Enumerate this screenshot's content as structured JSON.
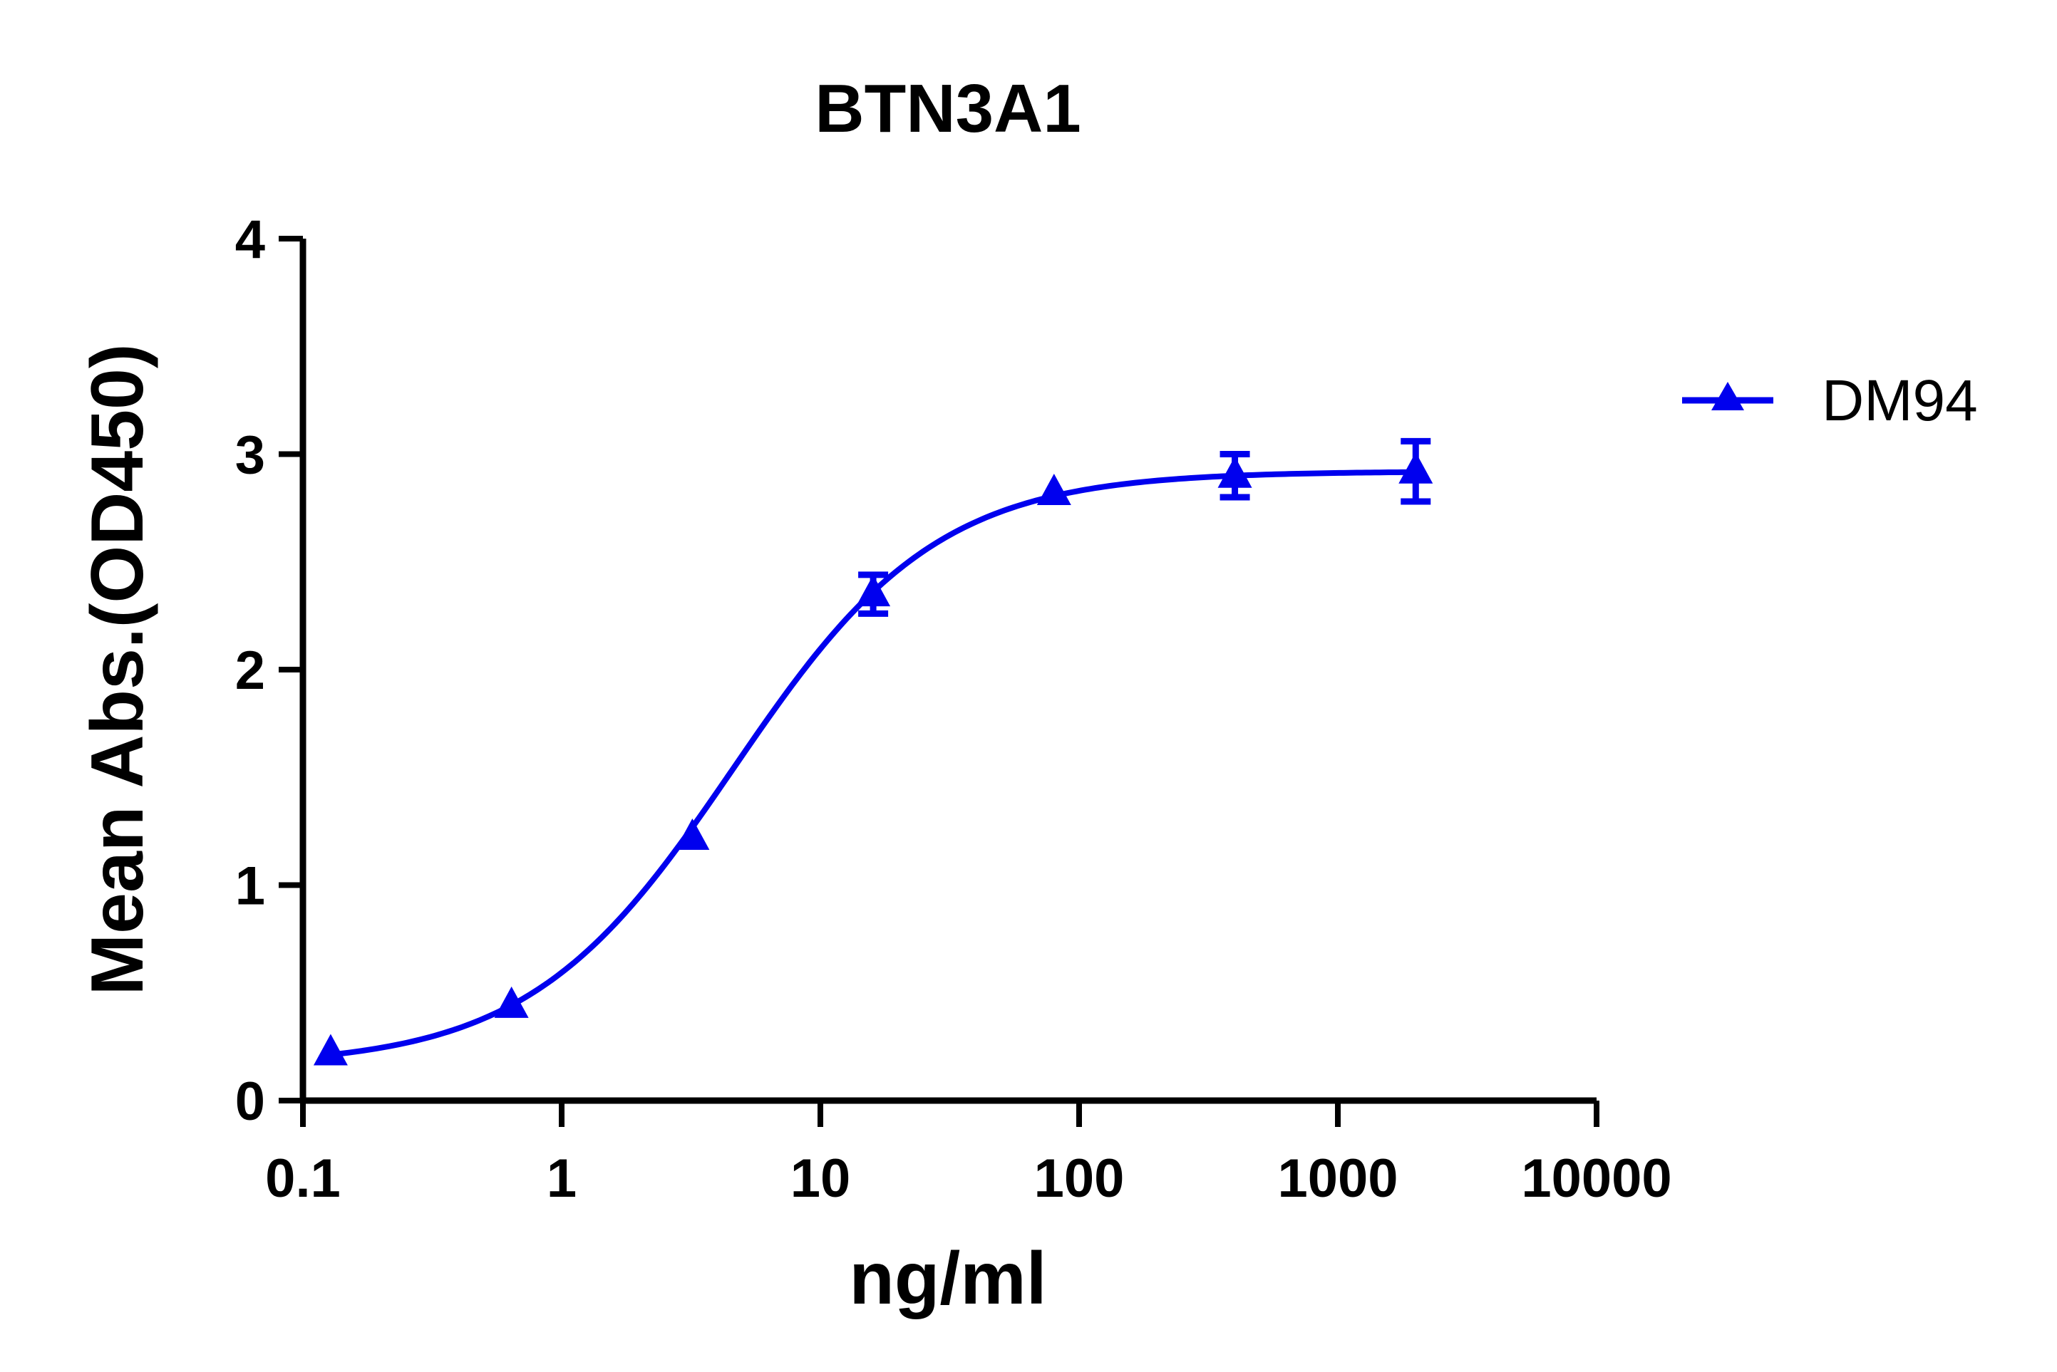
{
  "chart_data": {
    "type": "scatter",
    "title": "BTN3A1",
    "xlabel": "ng/ml",
    "ylabel": "Mean Abs.(OD450)",
    "x_scale": "log",
    "xlim": [
      0.1,
      10000
    ],
    "ylim": [
      0,
      4
    ],
    "x_ticks": [
      "0.1",
      "1",
      "10",
      "100",
      "1000",
      "10000"
    ],
    "y_ticks": [
      "0",
      "1",
      "2",
      "3",
      "4"
    ],
    "legend_position": "right",
    "series": [
      {
        "name": "DM94",
        "color": "#0000ee",
        "marker": "triangle",
        "x": [
          0.128,
          0.64,
          3.2,
          16,
          80,
          400,
          2000
        ],
        "y": [
          0.22,
          0.44,
          1.22,
          2.35,
          2.82,
          2.9,
          2.92
        ],
        "error": [
          0,
          0,
          0,
          0.09,
          0,
          0.1,
          0.14
        ],
        "fit": "sigmoidal 4PL",
        "fit_params": {
          "bottom": 0.16,
          "top": 2.92,
          "ec50": 4.6,
          "hill": 1.1
        }
      }
    ]
  }
}
